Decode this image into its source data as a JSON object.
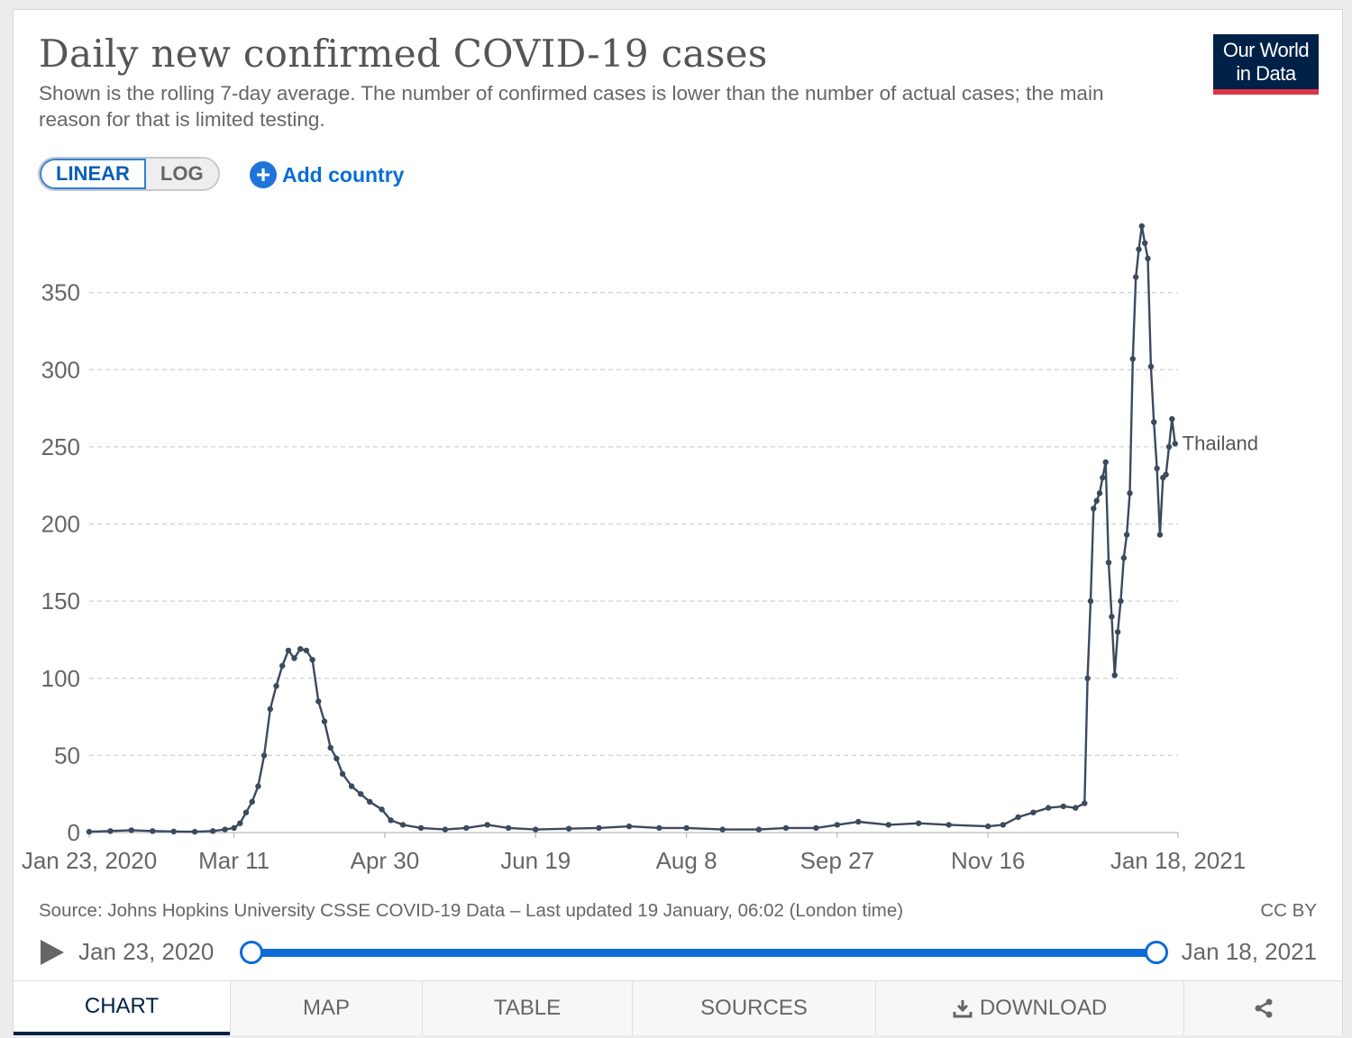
{
  "header": {
    "title": "Daily new confirmed COVID-19 cases",
    "subtitle": "Shown is the rolling 7-day average. The number of confirmed cases is lower than the number of actual cases; the main reason for that is limited testing.",
    "logo_line1": "Our World",
    "logo_line2": "in Data"
  },
  "controls": {
    "linear_label": "LINEAR",
    "log_label": "LOG",
    "active_scale": "linear",
    "add_country_label": "Add country"
  },
  "chart_data": {
    "type": "line",
    "title": "Daily new confirmed COVID-19 cases",
    "ylabel": "",
    "xlabel": "",
    "ylim": [
      0,
      400
    ],
    "yticks": [
      0,
      50,
      100,
      150,
      200,
      250,
      300,
      350
    ],
    "xlim": [
      "2020-01-23",
      "2021-01-18"
    ],
    "xticks": [
      {
        "date": "2020-01-23",
        "label": "Jan 23, 2020"
      },
      {
        "date": "2020-03-11",
        "label": "Mar 11"
      },
      {
        "date": "2020-04-30",
        "label": "Apr 30"
      },
      {
        "date": "2020-06-19",
        "label": "Jun 19"
      },
      {
        "date": "2020-08-08",
        "label": "Aug 8"
      },
      {
        "date": "2020-09-27",
        "label": "Sep 27"
      },
      {
        "date": "2020-11-16",
        "label": "Nov 16"
      },
      {
        "date": "2021-01-18",
        "label": "Jan 18, 2021"
      }
    ],
    "grid": "horizontal dashed",
    "line_color": "#3b4a5e",
    "series": [
      {
        "name": "Thailand",
        "points": [
          [
            "2020-01-23",
            0.5
          ],
          [
            "2020-01-30",
            1
          ],
          [
            "2020-02-06",
            1.5
          ],
          [
            "2020-02-13",
            1
          ],
          [
            "2020-02-20",
            0.7
          ],
          [
            "2020-02-27",
            0.5
          ],
          [
            "2020-03-04",
            1
          ],
          [
            "2020-03-08",
            2
          ],
          [
            "2020-03-11",
            3
          ],
          [
            "2020-03-13",
            6
          ],
          [
            "2020-03-15",
            13
          ],
          [
            "2020-03-17",
            20
          ],
          [
            "2020-03-19",
            30
          ],
          [
            "2020-03-21",
            50
          ],
          [
            "2020-03-23",
            80
          ],
          [
            "2020-03-25",
            95
          ],
          [
            "2020-03-27",
            108
          ],
          [
            "2020-03-29",
            118
          ],
          [
            "2020-03-31",
            113
          ],
          [
            "2020-04-02",
            119
          ],
          [
            "2020-04-04",
            118
          ],
          [
            "2020-04-06",
            112
          ],
          [
            "2020-04-08",
            85
          ],
          [
            "2020-04-10",
            72
          ],
          [
            "2020-04-12",
            55
          ],
          [
            "2020-04-14",
            48
          ],
          [
            "2020-04-16",
            38
          ],
          [
            "2020-04-19",
            30
          ],
          [
            "2020-04-22",
            25
          ],
          [
            "2020-04-25",
            20
          ],
          [
            "2020-04-29",
            15
          ],
          [
            "2020-05-02",
            8
          ],
          [
            "2020-05-06",
            5
          ],
          [
            "2020-05-12",
            3
          ],
          [
            "2020-05-20",
            2
          ],
          [
            "2020-05-27",
            3
          ],
          [
            "2020-06-03",
            5
          ],
          [
            "2020-06-10",
            3
          ],
          [
            "2020-06-19",
            2
          ],
          [
            "2020-06-30",
            2.5
          ],
          [
            "2020-07-10",
            3
          ],
          [
            "2020-07-20",
            4
          ],
          [
            "2020-07-30",
            3
          ],
          [
            "2020-08-08",
            3
          ],
          [
            "2020-08-20",
            2
          ],
          [
            "2020-09-01",
            2
          ],
          [
            "2020-09-10",
            3
          ],
          [
            "2020-09-20",
            3
          ],
          [
            "2020-09-27",
            5
          ],
          [
            "2020-10-04",
            7
          ],
          [
            "2020-10-14",
            5
          ],
          [
            "2020-10-24",
            6
          ],
          [
            "2020-11-03",
            5
          ],
          [
            "2020-11-16",
            4
          ],
          [
            "2020-11-21",
            5
          ],
          [
            "2020-11-26",
            10
          ],
          [
            "2020-12-01",
            13
          ],
          [
            "2020-12-06",
            16
          ],
          [
            "2020-12-11",
            17
          ],
          [
            "2020-12-15",
            16
          ],
          [
            "2020-12-18",
            19
          ],
          [
            "2020-12-19",
            100
          ],
          [
            "2020-12-20",
            150
          ],
          [
            "2020-12-21",
            210
          ],
          [
            "2020-12-22",
            215
          ],
          [
            "2020-12-23",
            220
          ],
          [
            "2020-12-24",
            230
          ],
          [
            "2020-12-25",
            240
          ],
          [
            "2020-12-26",
            175
          ],
          [
            "2020-12-27",
            140
          ],
          [
            "2020-12-28",
            102
          ],
          [
            "2020-12-29",
            130
          ],
          [
            "2020-12-30",
            150
          ],
          [
            "2020-12-31",
            178
          ],
          [
            "2021-01-01",
            193
          ],
          [
            "2021-01-02",
            220
          ],
          [
            "2021-01-03",
            307
          ],
          [
            "2021-01-04",
            360
          ],
          [
            "2021-01-05",
            378
          ],
          [
            "2021-01-06",
            393
          ],
          [
            "2021-01-07",
            382
          ],
          [
            "2021-01-08",
            372
          ],
          [
            "2021-01-09",
            302
          ],
          [
            "2021-01-10",
            266
          ],
          [
            "2021-01-11",
            236
          ],
          [
            "2021-01-12",
            193
          ],
          [
            "2021-01-13",
            230
          ],
          [
            "2021-01-14",
            232
          ],
          [
            "2021-01-15",
            250
          ],
          [
            "2021-01-16",
            268
          ],
          [
            "2021-01-17",
            252
          ]
        ]
      }
    ]
  },
  "footer": {
    "source": "Source: Johns Hopkins University CSSE COVID-19 Data – Last updated 19 January, 06:02 (London time)",
    "license": "CC BY"
  },
  "timeline": {
    "start_label": "Jan 23, 2020",
    "end_label": "Jan 18, 2021"
  },
  "tabs": [
    {
      "id": "chart",
      "label": "CHART",
      "active": true
    },
    {
      "id": "map",
      "label": "MAP"
    },
    {
      "id": "table",
      "label": "TABLE"
    },
    {
      "id": "sources",
      "label": "SOURCES"
    },
    {
      "id": "download",
      "label": "DOWNLOAD"
    },
    {
      "id": "share",
      "label": ""
    }
  ],
  "icons": {
    "play": "play-icon",
    "add": "plus-circle-icon",
    "download": "download-icon",
    "share": "share-icon"
  }
}
